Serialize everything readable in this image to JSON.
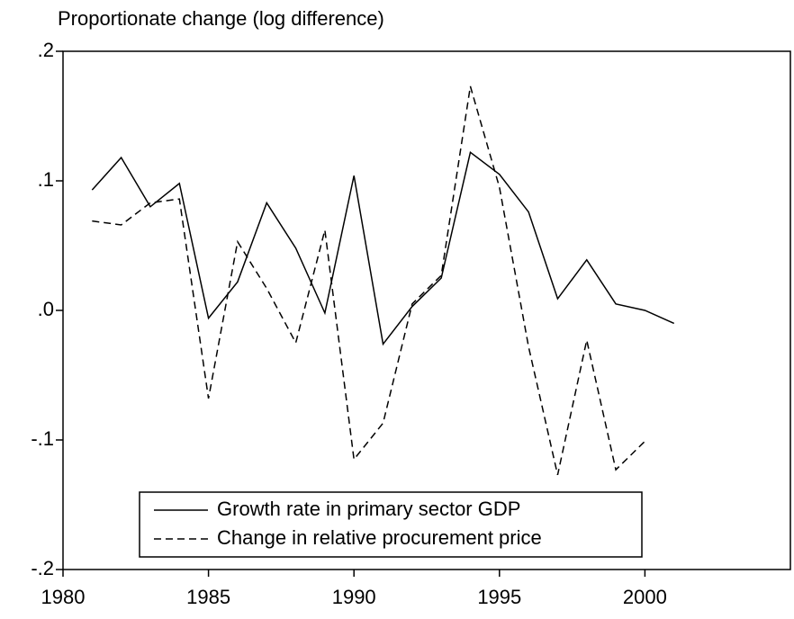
{
  "chart_data": {
    "type": "line",
    "title": "Proportionate change (log difference)",
    "x": [
      1981,
      1982,
      1983,
      1984,
      1985,
      1986,
      1987,
      1988,
      1989,
      1990,
      1991,
      1992,
      1993,
      1994,
      1995,
      1996,
      1997,
      1998,
      1999,
      2000,
      2001
    ],
    "series": [
      {
        "name": "Growth rate in primary sector GDP",
        "color": "#000000",
        "style": "solid",
        "values": [
          0.093,
          0.118,
          0.08,
          0.098,
          -0.006,
          0.022,
          0.083,
          0.048,
          -0.002,
          0.104,
          -0.026,
          0.003,
          0.025,
          0.122,
          0.105,
          0.076,
          0.009,
          0.039,
          0.005,
          0.0,
          -0.01
        ]
      },
      {
        "name": "Change in relative procurement price",
        "color": "#000000",
        "style": "dashed",
        "values": [
          0.069,
          0.066,
          0.083,
          0.086,
          -0.068,
          0.053,
          0.017,
          -0.025,
          0.062,
          -0.115,
          -0.087,
          0.005,
          0.027,
          0.173,
          0.095,
          -0.028,
          -0.127,
          -0.023,
          -0.123,
          -0.101,
          null
        ]
      }
    ],
    "xlim": [
      1980,
      2005
    ],
    "xticks": [
      1980,
      1985,
      1990,
      1995,
      2000
    ],
    "ylim": [
      -0.2,
      0.2
    ],
    "yticks": [
      {
        "value": -0.2,
        "label": "-.2"
      },
      {
        "value": -0.1,
        "label": "-.1"
      },
      {
        "value": 0,
        "label": ".0"
      },
      {
        "value": 0.1,
        "label": ".1"
      },
      {
        "value": 0.2,
        "label": ".2"
      }
    ],
    "legend": "lower center"
  }
}
